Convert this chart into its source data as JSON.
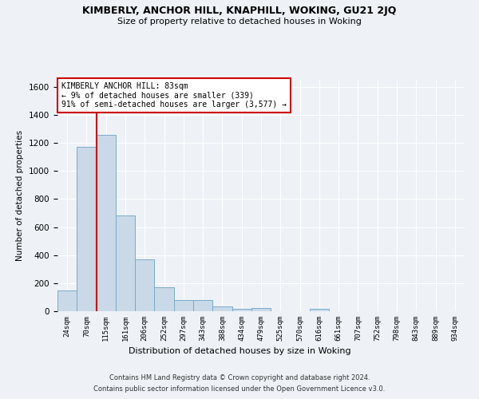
{
  "title1": "KIMBERLY, ANCHOR HILL, KNAPHILL, WOKING, GU21 2JQ",
  "title2": "Size of property relative to detached houses in Woking",
  "xlabel": "Distribution of detached houses by size in Woking",
  "ylabel": "Number of detached properties",
  "footer1": "Contains HM Land Registry data © Crown copyright and database right 2024.",
  "footer2": "Contains public sector information licensed under the Open Government Licence v3.0.",
  "annotation_title": "KIMBERLY ANCHOR HILL: 83sqm",
  "annotation_line2": "← 9% of detached houses are smaller (339)",
  "annotation_line3": "91% of semi-detached houses are larger (3,577) →",
  "bar_color": "#c9d9e8",
  "bar_edge_color": "#7aaac8",
  "vline_color": "#cc0000",
  "vline_x": 1.5,
  "categories": [
    "24sqm",
    "70sqm",
    "115sqm",
    "161sqm",
    "206sqm",
    "252sqm",
    "297sqm",
    "343sqm",
    "388sqm",
    "434sqm",
    "479sqm",
    "525sqm",
    "570sqm",
    "616sqm",
    "661sqm",
    "707sqm",
    "752sqm",
    "798sqm",
    "843sqm",
    "889sqm",
    "934sqm"
  ],
  "values": [
    148,
    1172,
    1255,
    685,
    370,
    168,
    80,
    80,
    35,
    15,
    20,
    0,
    0,
    15,
    0,
    0,
    0,
    0,
    0,
    0,
    0
  ],
  "ylim": [
    0,
    1650
  ],
  "yticks": [
    0,
    200,
    400,
    600,
    800,
    1000,
    1200,
    1400,
    1600
  ],
  "bg_color": "#eef2f7",
  "grid_color": "#ffffff",
  "annotation_box_color": "#ffffff",
  "annotation_box_edge": "#cc0000"
}
